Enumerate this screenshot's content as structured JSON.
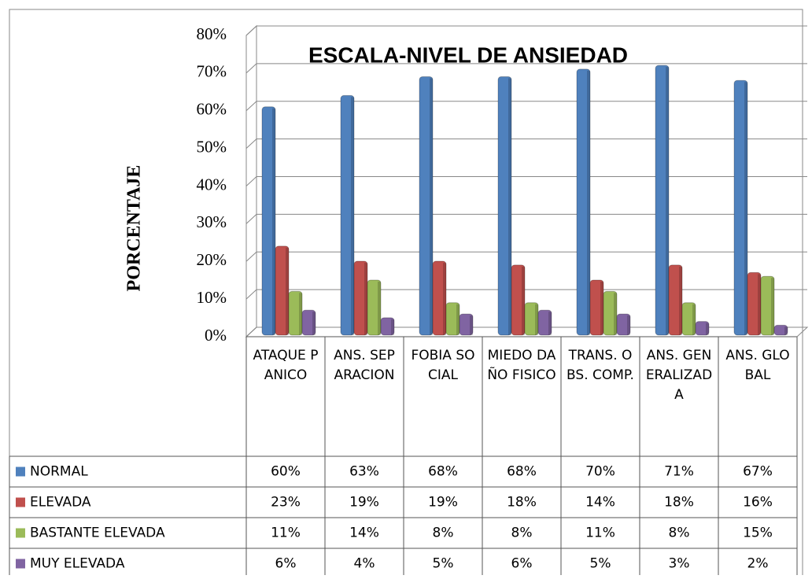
{
  "chart_data": {
    "type": "bar",
    "title": "ESCALA-NIVEL DE ANSIEDAD",
    "y_label": "PORCENTAJE",
    "categories": [
      "ATAQUE PANICO",
      "ANS. SEPARACION",
      "FOBIA SOCIAL",
      "MIEDO DAÑO FISICO",
      "TRANS. OBS. COMP.",
      "ANS. GENERALIZADA",
      "ANS. GLOBAL"
    ],
    "series": [
      {
        "name": "NORMAL",
        "color": "#4f81bd",
        "values": [
          60,
          63,
          68,
          68,
          70,
          71,
          67
        ],
        "value_labels": [
          "60%",
          "63%",
          "68%",
          "68%",
          "70%",
          "71%",
          "67%"
        ]
      },
      {
        "name": "ELEVADA",
        "color": "#c0504d",
        "values": [
          23,
          19,
          19,
          18,
          14,
          18,
          16
        ],
        "value_labels": [
          "23%",
          "19%",
          "19%",
          "18%",
          "14%",
          "18%",
          "16%"
        ]
      },
      {
        "name": "BASTANTE ELEVADA",
        "color": "#9bbb59",
        "values": [
          11,
          14,
          8,
          8,
          11,
          8,
          15
        ],
        "value_labels": [
          "11%",
          "14%",
          "8%",
          "8%",
          "11%",
          "8%",
          "15%"
        ]
      },
      {
        "name": "MUY ELEVADA",
        "color": "#8064a2",
        "values": [
          6,
          4,
          5,
          6,
          5,
          3,
          2
        ],
        "value_labels": [
          "6%",
          "4%",
          "5%",
          "6%",
          "5%",
          "3%",
          "2%"
        ]
      }
    ],
    "ylim": [
      0,
      80
    ],
    "yticks": [
      {
        "value": 0,
        "label": "0%"
      },
      {
        "value": 10,
        "label": "10%"
      },
      {
        "value": 20,
        "label": "20%"
      },
      {
        "value": 30,
        "label": "30%"
      },
      {
        "value": 40,
        "label": "40%"
      },
      {
        "value": 50,
        "label": "50%"
      },
      {
        "value": 60,
        "label": "60%"
      },
      {
        "value": 70,
        "label": "70%"
      },
      {
        "value": 80,
        "label": "80%"
      }
    ],
    "grid": true
  }
}
